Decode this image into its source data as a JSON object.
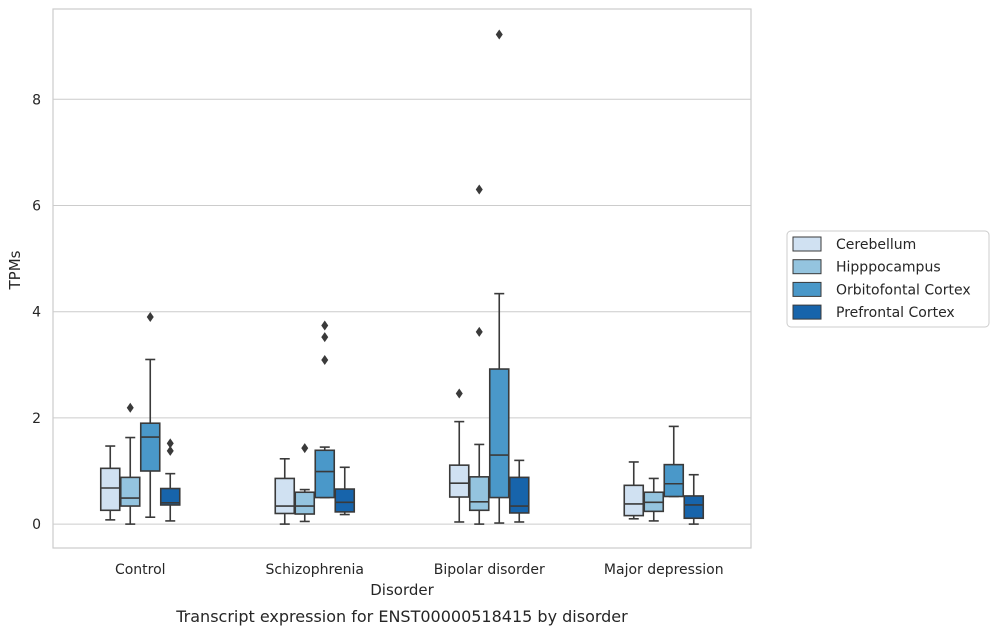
{
  "chart_data": {
    "type": "box",
    "xlabel": "Disorder",
    "ylabel": "TPMs",
    "caption": "Transcript expression for ENST00000518415 by disorder",
    "ylim": [
      -0.45,
      9.7
    ],
    "yticks": [
      0,
      2,
      4,
      6,
      8
    ],
    "grid": "horizontal",
    "legend_position": "right",
    "categories": [
      "Control",
      "Schizophrenia",
      "Bipolar disorder",
      "Major depression"
    ],
    "series": [
      {
        "name": "Cerebellum",
        "color": "#d0e1f2",
        "boxes": [
          {
            "whislo": 0.08,
            "q1": 0.26,
            "med": 0.68,
            "q3": 1.05,
            "whishi": 1.47,
            "fliers": []
          },
          {
            "whislo": 0.0,
            "q1": 0.2,
            "med": 0.34,
            "q3": 0.86,
            "whishi": 1.23,
            "fliers": []
          },
          {
            "whislo": 0.04,
            "q1": 0.51,
            "med": 0.77,
            "q3": 1.11,
            "whishi": 1.93,
            "fliers": [
              2.46
            ]
          },
          {
            "whislo": 0.1,
            "q1": 0.16,
            "med": 0.38,
            "q3": 0.73,
            "whishi": 1.17,
            "fliers": []
          }
        ]
      },
      {
        "name": "Hipppocampus",
        "color": "#94c4df",
        "boxes": [
          {
            "whislo": 0.0,
            "q1": 0.34,
            "med": 0.49,
            "q3": 0.88,
            "whishi": 1.63,
            "fliers": [
              2.19
            ]
          },
          {
            "whislo": 0.05,
            "q1": 0.19,
            "med": 0.34,
            "q3": 0.6,
            "whishi": 0.65,
            "fliers": [
              1.43
            ]
          },
          {
            "whislo": 0.0,
            "q1": 0.26,
            "med": 0.42,
            "q3": 0.89,
            "whishi": 1.5,
            "fliers": [
              3.62,
              6.3
            ]
          },
          {
            "whislo": 0.06,
            "q1": 0.24,
            "med": 0.41,
            "q3": 0.6,
            "whishi": 0.86,
            "fliers": []
          }
        ]
      },
      {
        "name": "Orbitofontal Cortex",
        "color": "#4a98c9",
        "boxes": [
          {
            "whislo": 0.13,
            "q1": 1.0,
            "med": 1.64,
            "q3": 1.9,
            "whishi": 3.1,
            "fliers": [
              3.9
            ]
          },
          {
            "whislo": 0.5,
            "q1": 0.5,
            "med": 0.99,
            "q3": 1.39,
            "whishi": 1.45,
            "fliers": [
              3.09,
              3.52,
              3.74
            ]
          },
          {
            "whislo": 0.02,
            "q1": 0.5,
            "med": 1.3,
            "q3": 2.92,
            "whishi": 4.34,
            "fliers": [
              9.22
            ]
          },
          {
            "whislo": 0.52,
            "q1": 0.52,
            "med": 0.76,
            "q3": 1.12,
            "whishi": 1.84,
            "fliers": []
          }
        ]
      },
      {
        "name": "Prefrontal Cortex",
        "color": "#1764ab",
        "boxes": [
          {
            "whislo": 0.06,
            "q1": 0.36,
            "med": 0.4,
            "q3": 0.67,
            "whishi": 0.95,
            "fliers": [
              1.38,
              1.52
            ]
          },
          {
            "whislo": 0.18,
            "q1": 0.23,
            "med": 0.41,
            "q3": 0.66,
            "whishi": 1.07,
            "fliers": []
          },
          {
            "whislo": 0.04,
            "q1": 0.21,
            "med": 0.34,
            "q3": 0.88,
            "whishi": 1.2,
            "fliers": []
          },
          {
            "whislo": 0.0,
            "q1": 0.11,
            "med": 0.36,
            "q3": 0.53,
            "whishi": 0.93,
            "fliers": []
          }
        ]
      }
    ]
  }
}
